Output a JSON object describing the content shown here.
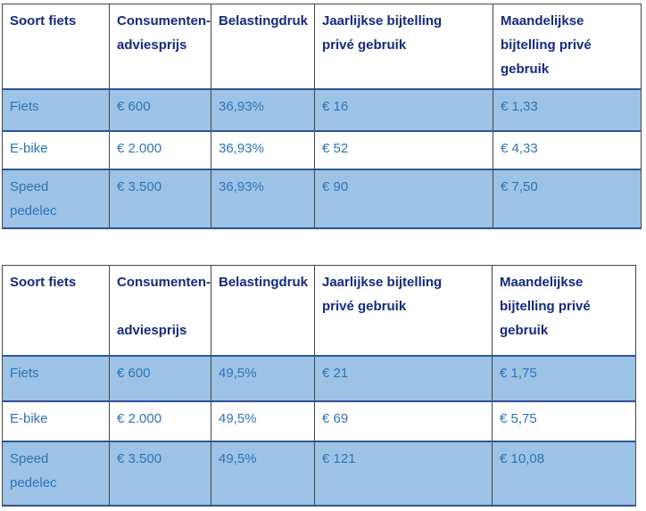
{
  "colors": {
    "row_highlight": "#9DC3E6",
    "header_text": "#132A80",
    "body_text": "#2E74B5",
    "horizontal_border": "#2E5395",
    "vertical_border": "#454545"
  },
  "tables": [
    {
      "headers": [
        "Soort fiets",
        "Consumenten-\nadviesprijs",
        "Belastingdruk",
        "Jaarlijkse bijtelling\nprivé gebruik",
        "Maandelijkse\nbijtelling privé\ngebruik"
      ],
      "rows": [
        [
          "Fiets",
          "€ 600",
          "36,93%",
          "€ 16",
          "€ 1,33"
        ],
        [
          "E-bike",
          "€ 2.000",
          "36,93%",
          "€ 52",
          "€ 4,33"
        ],
        [
          "Speed\npedelec",
          "€ 3.500",
          "36,93%",
          "€ 90",
          "€ 7,50"
        ]
      ]
    },
    {
      "headers": [
        "Soort fiets",
        "Consumenten-\n\nadviesprijs",
        "Belastingdruk",
        "Jaarlijkse bijtelling\nprivé gebruik",
        "Maandelijkse\nbijtelling privé\ngebruik"
      ],
      "rows": [
        [
          "Fiets",
          "€ 600",
          "49,5%",
          "€ 21",
          "€ 1,75"
        ],
        [
          "E-bike",
          "€ 2.000",
          "49,5%",
          "€ 69",
          "€ 5,75"
        ],
        [
          "Speed\npedelec",
          "€ 3.500",
          "49,5%",
          "€ 121",
          "€ 10,08"
        ]
      ]
    }
  ]
}
